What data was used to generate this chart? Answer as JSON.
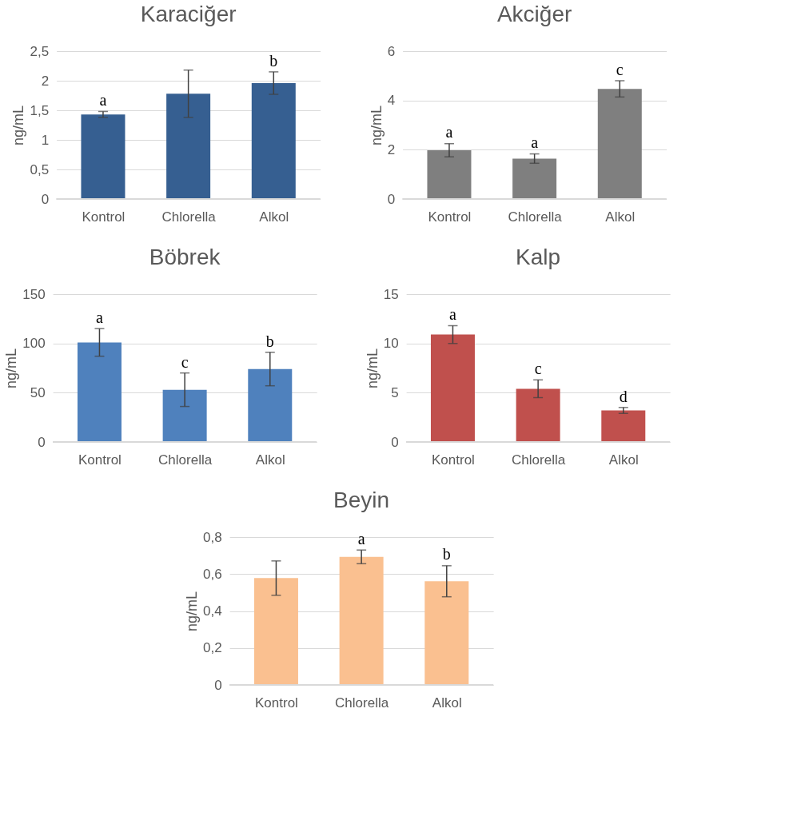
{
  "chart_data": [
    {
      "type": "bar",
      "title": "Karaciğer",
      "ylabel": "ng/mL",
      "categories": [
        "Kontrol",
        "Chlorella",
        "Alkol"
      ],
      "values": [
        1.43,
        1.78,
        1.96
      ],
      "errors": [
        0.05,
        0.4,
        0.19
      ],
      "color": "#365f91",
      "ylim": [
        0,
        2.5
      ],
      "yticks": [
        0,
        {
          "value": 0.5,
          "label": "0,5"
        },
        1,
        {
          "value": 1.5,
          "label": "1,5"
        },
        2,
        {
          "value": 2.5,
          "label": "2,5"
        }
      ],
      "grid": "y",
      "annotations": [
        {
          "text": "a",
          "x": "Kontrol",
          "y": 1.48
        },
        {
          "text": "b",
          "x": "Alkol",
          "y": 2.15
        }
      ]
    },
    {
      "type": "bar",
      "title": "Akciğer",
      "ylabel": "ng/mL",
      "categories": [
        "Kontrol",
        "Chlorella",
        "Alkol"
      ],
      "values": [
        1.98,
        1.64,
        4.47
      ],
      "errors": [
        0.27,
        0.19,
        0.33
      ],
      "color": "#7f7f7f",
      "ylim": [
        0,
        6
      ],
      "yticks": [
        0,
        2,
        4,
        6
      ],
      "grid": "y",
      "annotations": [
        {
          "text": "a",
          "x": "Kontrol",
          "y": 2.26
        },
        {
          "text": "a",
          "x": "Chlorella",
          "y": 1.84
        },
        {
          "text": "c",
          "x": "Alkol",
          "y": 4.81
        }
      ]
    },
    {
      "type": "bar",
      "title": "Böbrek",
      "ylabel": "ng/mL",
      "categories": [
        "Kontrol",
        "Chlorella",
        "Alkol"
      ],
      "values": [
        101,
        53,
        74
      ],
      "errors": [
        14,
        17,
        17
      ],
      "color": "#4f81bd",
      "ylim": [
        0,
        150
      ],
      "yticks": [
        0,
        50,
        100,
        150
      ],
      "grid": "y",
      "annotations": [
        {
          "text": "a",
          "x": "Kontrol",
          "y": 115
        },
        {
          "text": "c",
          "x": "Chlorella",
          "y": 70
        },
        {
          "text": "b",
          "x": "Alkol",
          "y": 91
        }
      ]
    },
    {
      "type": "bar",
      "title": "Kalp",
      "ylabel": "ng/mL",
      "categories": [
        "Kontrol",
        "Chlorella",
        "Alkol"
      ],
      "values": [
        10.9,
        5.4,
        3.2
      ],
      "errors": [
        0.9,
        0.9,
        0.3
      ],
      "color": "#c0504d",
      "ylim": [
        0,
        15
      ],
      "yticks": [
        0,
        5,
        10,
        15
      ],
      "grid": "y",
      "annotations": [
        {
          "text": "a",
          "x": "Kontrol",
          "y": 11.8
        },
        {
          "text": "c",
          "x": "Chlorella",
          "y": 6.3
        },
        {
          "text": "d",
          "x": "Alkol",
          "y": 3.5
        }
      ]
    },
    {
      "type": "bar",
      "title": "Beyin",
      "ylabel": "ng/mL",
      "categories": [
        "Kontrol",
        "Chlorella",
        "Alkol"
      ],
      "values": [
        0.578,
        0.693,
        0.561
      ],
      "errors": [
        0.093,
        0.037,
        0.084
      ],
      "color": "#fac090",
      "ylim": [
        0,
        0.8
      ],
      "yticks": [
        0,
        {
          "value": 0.2,
          "label": "0,2"
        },
        {
          "value": 0.4,
          "label": "0,4"
        },
        {
          "value": 0.6,
          "label": "0,6"
        },
        {
          "value": 0.8,
          "label": "0,8"
        }
      ],
      "grid": "y",
      "annotations": [
        {
          "text": "a",
          "x": "Chlorella",
          "y": 0.731
        },
        {
          "text": "b",
          "x": "Alkol",
          "y": 0.647
        }
      ]
    }
  ]
}
